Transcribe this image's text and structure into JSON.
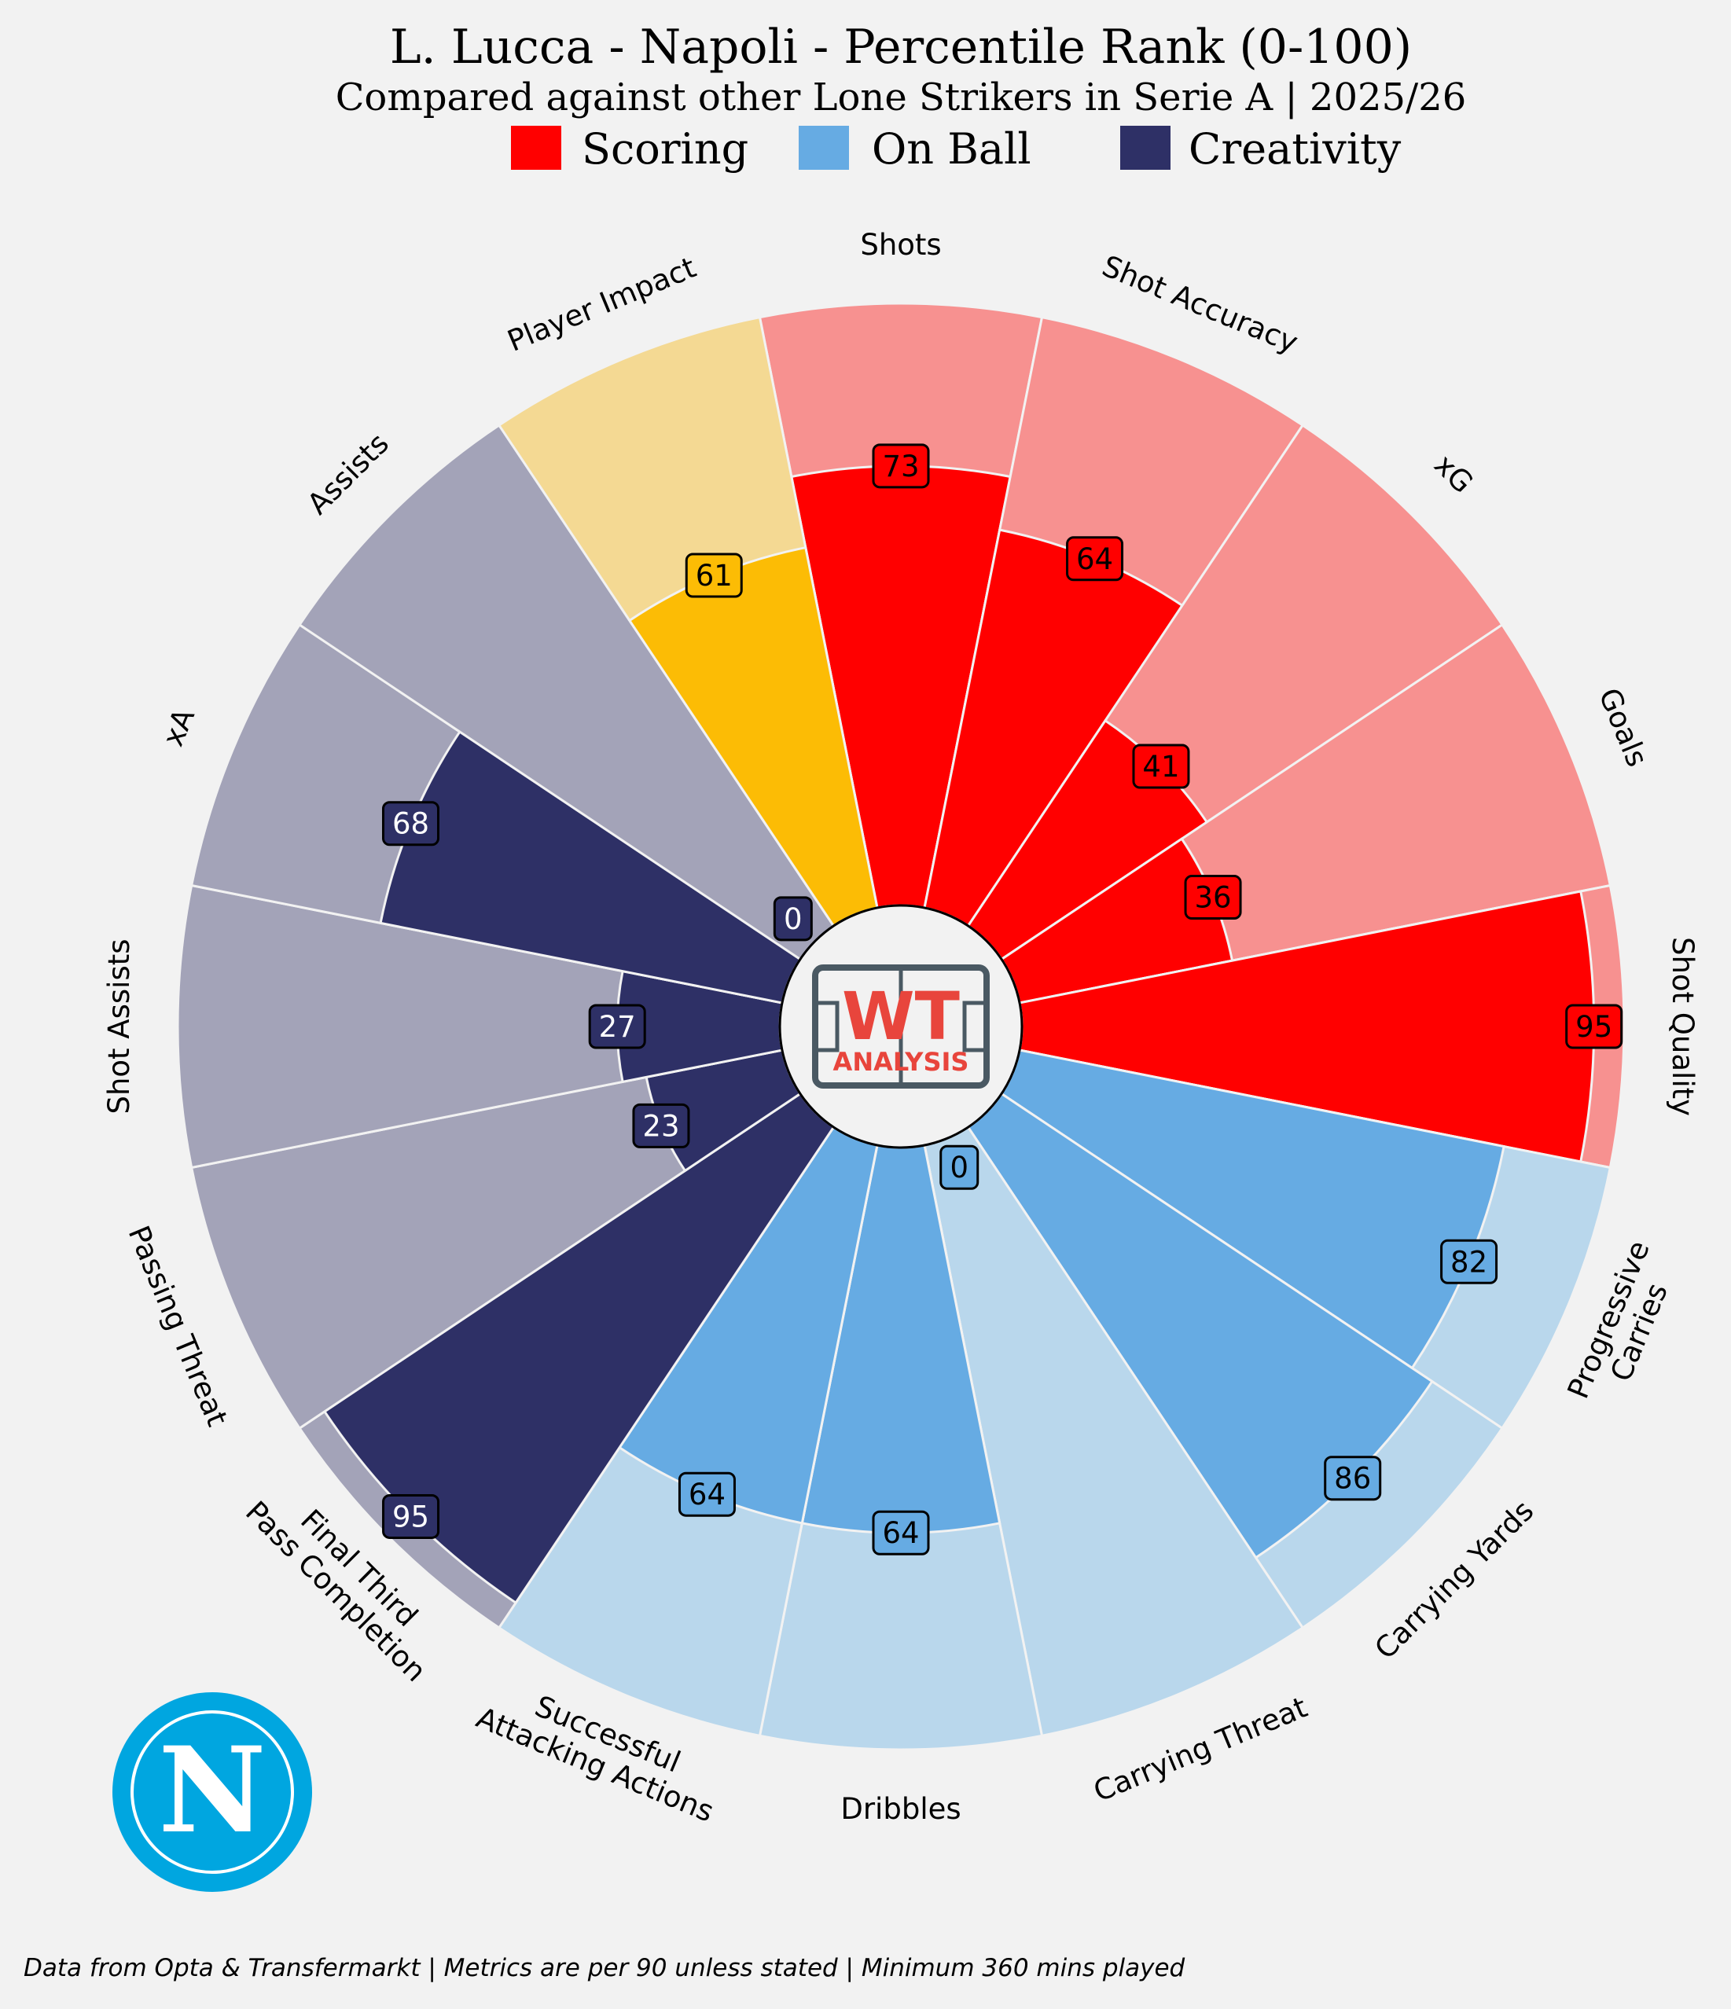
{
  "chart_data": {
    "type": "polar-bar",
    "title": "L. Lucca - Napoli - Percentile Rank (0-100)",
    "subtitle": "Compared against other Lone Strikers in Serie A | 2025/26",
    "range": [
      0,
      100
    ],
    "legend": [
      {
        "name": "Scoring",
        "color": "#ff0000"
      },
      {
        "name": "On Ball",
        "color": "#66abe3"
      },
      {
        "name": "Creativity",
        "color": "#2e3066"
      }
    ],
    "metrics": [
      {
        "label": [
          "Shots"
        ],
        "value": 73,
        "color": "#ff0000",
        "bg": "#f79190",
        "text_color": "#000000"
      },
      {
        "label": [
          "Shot Accuracy"
        ],
        "value": 64,
        "color": "#ff0000",
        "bg": "#f79190",
        "text_color": "#000000"
      },
      {
        "label": [
          "xG"
        ],
        "value": 41,
        "color": "#ff0000",
        "bg": "#f79190",
        "text_color": "#000000"
      },
      {
        "label": [
          "Goals"
        ],
        "value": 36,
        "color": "#ff0000",
        "bg": "#f79190",
        "text_color": "#000000"
      },
      {
        "label": [
          "Shot Quality"
        ],
        "value": 95,
        "color": "#ff0000",
        "bg": "#f79190",
        "text_color": "#000000"
      },
      {
        "label": [
          "Progressive",
          "Carries"
        ],
        "value": 82,
        "color": "#66abe3",
        "bg": "#b9d7ec",
        "text_color": "#000000"
      },
      {
        "label": [
          "Carrying Yards"
        ],
        "value": 86,
        "color": "#66abe3",
        "bg": "#b9d7ec",
        "text_color": "#000000"
      },
      {
        "label": [
          "Carrying Threat"
        ],
        "value": 0,
        "color": "#66abe3",
        "bg": "#b9d7ec",
        "text_color": "#000000"
      },
      {
        "label": [
          "Dribbles"
        ],
        "value": 64,
        "color": "#66abe3",
        "bg": "#b9d7ec",
        "text_color": "#000000"
      },
      {
        "label": [
          "Successful",
          "Attacking Actions"
        ],
        "value": 64,
        "color": "#66abe3",
        "bg": "#b9d7ec",
        "text_color": "#000000"
      },
      {
        "label": [
          "Final Third",
          "Pass Completion"
        ],
        "value": 95,
        "color": "#2e3066",
        "bg": "#a3a3b8",
        "text_color": "#ffffff"
      },
      {
        "label": [
          "Passing Threat"
        ],
        "value": 23,
        "color": "#2e3066",
        "bg": "#a3a3b8",
        "text_color": "#ffffff"
      },
      {
        "label": [
          "Shot Assists"
        ],
        "value": 27,
        "color": "#2e3066",
        "bg": "#a3a3b8",
        "text_color": "#ffffff"
      },
      {
        "label": [
          "xA"
        ],
        "value": 68,
        "color": "#2e3066",
        "bg": "#a3a3b8",
        "text_color": "#ffffff"
      },
      {
        "label": [
          "Assists"
        ],
        "value": 0,
        "color": "#2e3066",
        "bg": "#a3a3b8",
        "text_color": "#ffffff"
      },
      {
        "label": [
          "Player Impact"
        ],
        "value": 61,
        "color": "#fcbc05",
        "bg": "#f4d993",
        "text_color": "#000000"
      }
    ]
  },
  "center_logo": {
    "line1": "WT",
    "line2": "ANALYSIS"
  },
  "club_logo": {
    "letter": "N",
    "color": "#00a6e0"
  },
  "footer": "Data from Opta & Transfermarkt | Metrics are per 90 unless stated | Minimum 360 mins played"
}
